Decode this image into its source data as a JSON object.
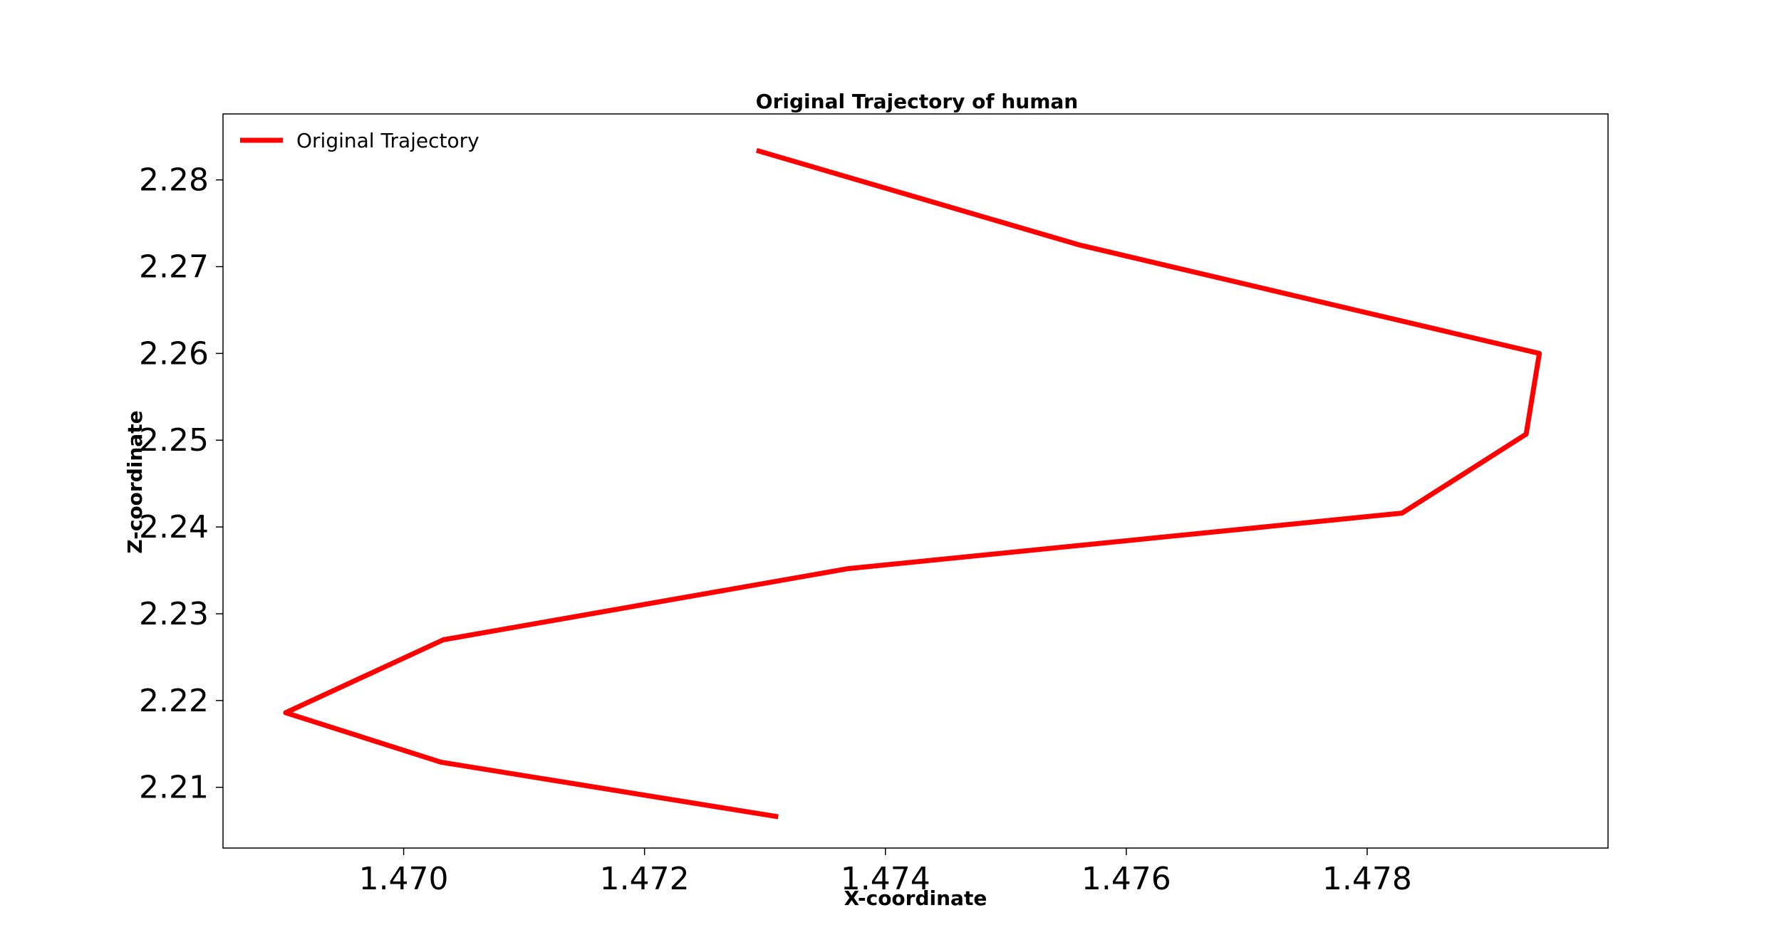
{
  "chart_data": {
    "type": "line",
    "title": "Original Trajectory of human",
    "xlabel": "X-coordinate",
    "ylabel": "Z-coordinate",
    "xlim": [
      1.4685,
      1.48
    ],
    "ylim": [
      2.203,
      2.2876
    ],
    "xticks": [
      1.47,
      1.472,
      1.474,
      1.476,
      1.478
    ],
    "xtick_labels": [
      "1.470",
      "1.472",
      "1.474",
      "1.476",
      "1.478"
    ],
    "yticks": [
      2.21,
      2.22,
      2.23,
      2.24,
      2.25,
      2.26,
      2.27,
      2.28
    ],
    "ytick_labels": [
      "2.21",
      "2.22",
      "2.23",
      "2.24",
      "2.25",
      "2.26",
      "2.27",
      "2.28"
    ],
    "grid": false,
    "legend": {
      "position": "top-left",
      "entries": [
        "Original Trajectory"
      ]
    },
    "series": [
      {
        "name": "Original Trajectory",
        "color": "#ff0000",
        "x": [
          1.47293,
          1.47561,
          1.47943,
          1.47932,
          1.47829,
          1.47369,
          1.47033,
          1.46902,
          1.47031,
          1.47311
        ],
        "y": [
          2.2834,
          2.2725,
          2.26,
          2.2507,
          2.2416,
          2.2352,
          2.227,
          2.2186,
          2.2129,
          2.2066
        ]
      }
    ]
  }
}
